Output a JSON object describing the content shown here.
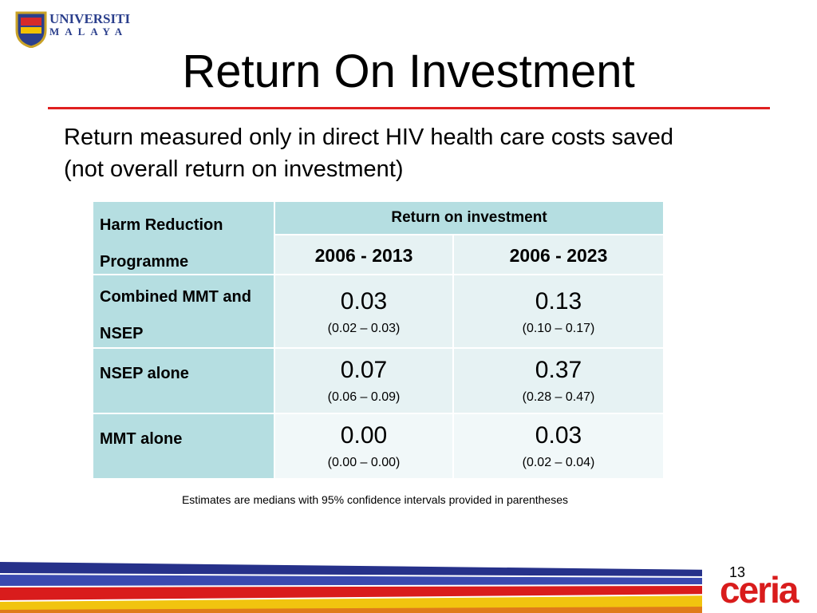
{
  "logo": {
    "line1": "UNIVERSITI",
    "line2": "MALAYA"
  },
  "title": "Return On Investment",
  "subtitle": "Return measured only in direct HIV health care costs saved (not overall return on investment)",
  "table": {
    "corner": "Harm Reduction Programme",
    "group": "Return on investment",
    "columns": [
      "2006 - 2013",
      "2006 - 2023"
    ],
    "rows": [
      {
        "label": "Combined MMT and NSEP",
        "cells": [
          {
            "value": "0.03",
            "range": "(0.02 – 0.03)"
          },
          {
            "value": "0.13",
            "range": "(0.10 – 0.17)"
          }
        ]
      },
      {
        "label": "NSEP alone",
        "cells": [
          {
            "value": "0.07",
            "range": "(0.06 – 0.09)"
          },
          {
            "value": "0.37",
            "range": "(0.28 – 0.47)"
          }
        ]
      },
      {
        "label": "MMT alone",
        "cells": [
          {
            "value": "0.00",
            "range": "(0.00 – 0.00)"
          },
          {
            "value": "0.03",
            "range": "(0.02 – 0.04)"
          }
        ]
      }
    ]
  },
  "footnote": "Estimates are medians with 95% confidence intervals provided in parentheses",
  "page_number": "13",
  "footer_logo": "ceria"
}
